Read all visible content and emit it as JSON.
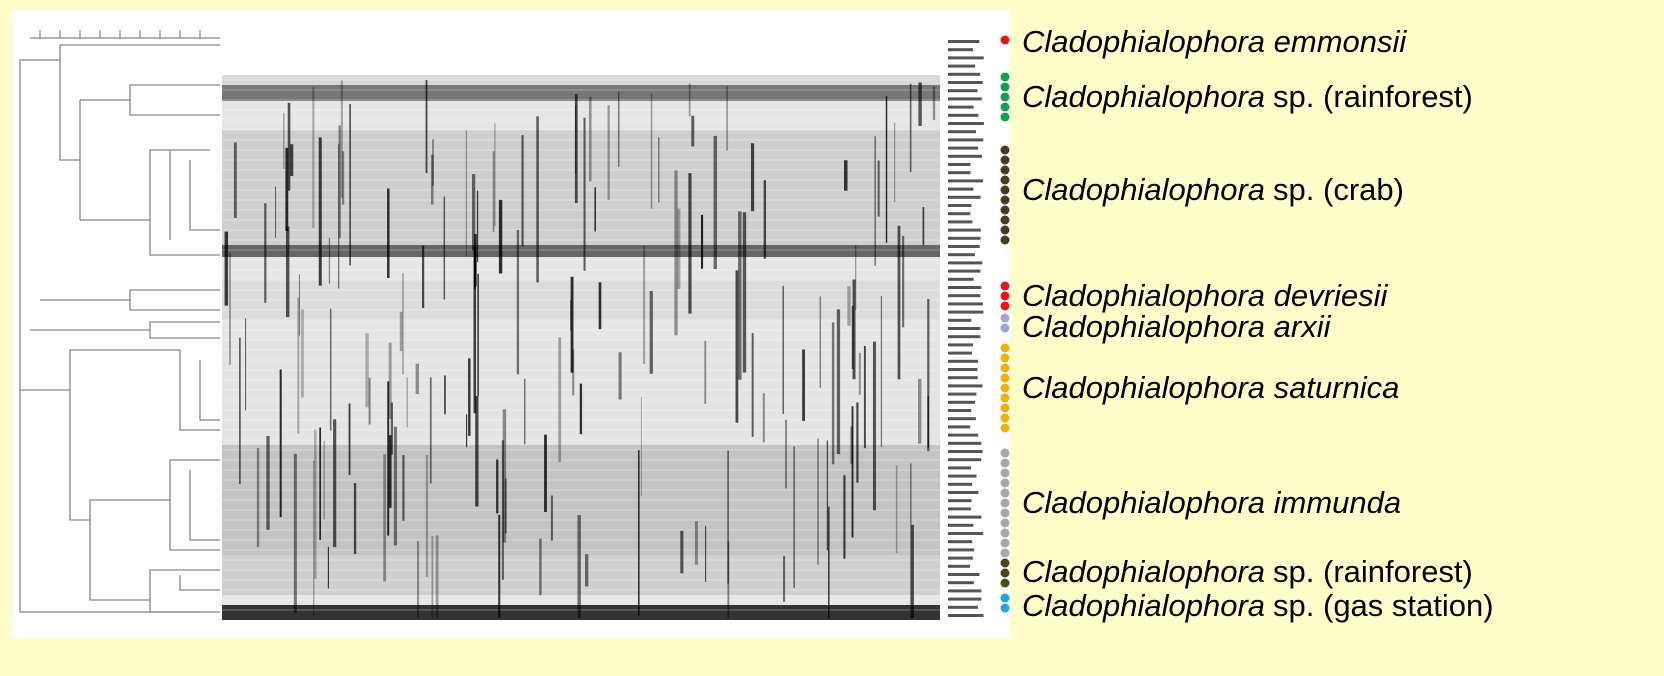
{
  "labels": [
    {
      "italic": "Cladophialophora emmonsii"
    },
    {
      "italic": "Cladophialophora",
      "plain": "sp. (rainforest)"
    },
    {
      "italic": "Cladophialophora",
      "plain": "sp. (crab)"
    },
    {
      "italic": "Cladophialophora devriesii"
    },
    {
      "italic": "Cladophialophora arxii"
    },
    {
      "italic": "Cladophialophora saturnica"
    },
    {
      "italic": "Cladophialophora immunda"
    },
    {
      "italic": "Cladophialophora",
      "plain": "sp. (rainforest)"
    },
    {
      "italic": "Cladophialophora",
      "plain": "sp. (gas station)"
    }
  ]
}
